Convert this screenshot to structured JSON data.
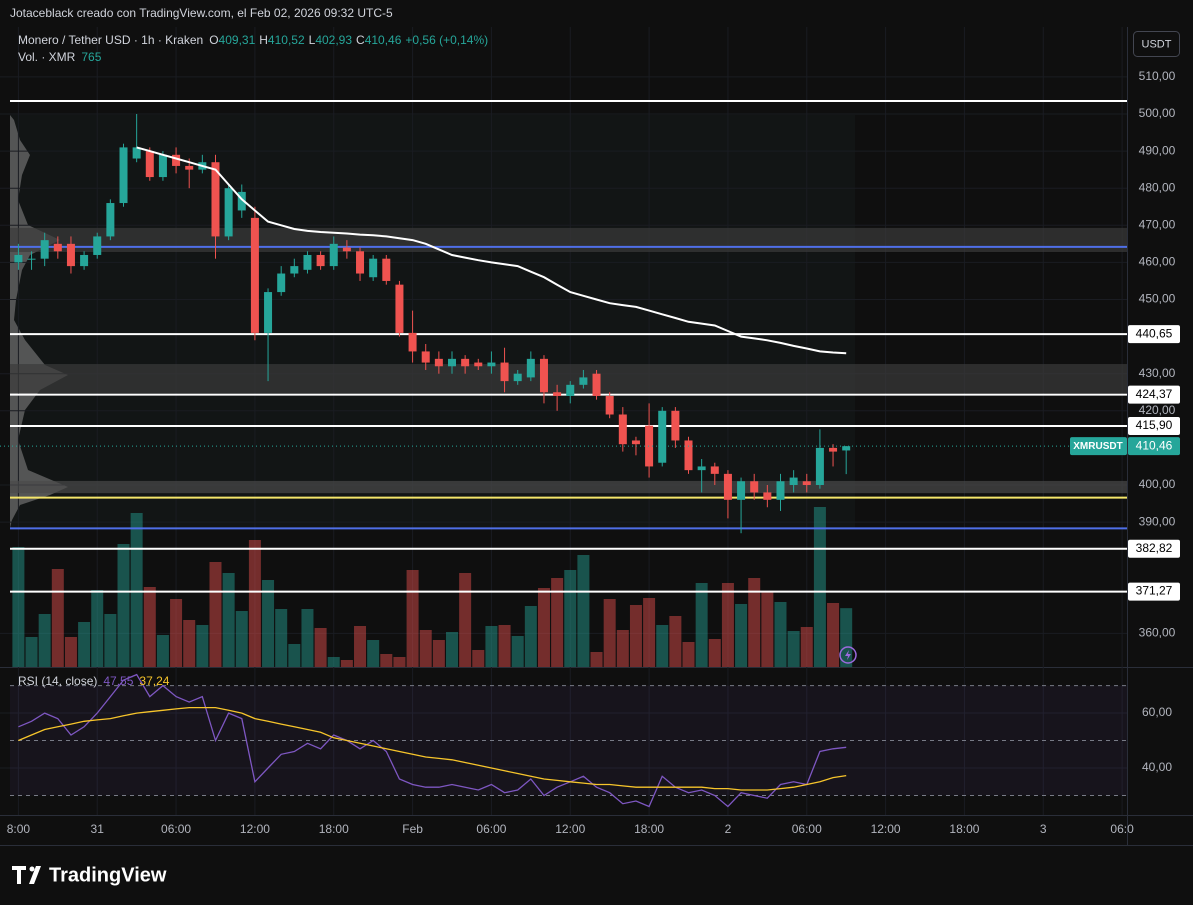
{
  "header": {
    "attribution": "Jotaceblack creado con TradingView.com, el Feb 02, 2026 09:32 UTC-5",
    "symbol": "Monero / Tether USD · 1h · Kraken",
    "ohlc": [
      "O",
      "409,31",
      "H",
      "410,52",
      "L",
      "402,93",
      "C",
      "410,46",
      "+0,56 (+0,14%)"
    ],
    "volume_label": "Vol. · XMR",
    "volume_value": "765"
  },
  "currency_button": "USDT",
  "chart_data": [
    {
      "type": "candlestick",
      "up_color": "#26a69a",
      "down_color": "#ef5350",
      "grid": true,
      "xlim": [
        -1.4,
        84.6
      ],
      "ylim": [
        350.94,
        523.45
      ],
      "vlim": [
        0,
        2600
      ],
      "xticks": [
        {
          "value": 0,
          "label": "8:00"
        },
        {
          "value": 6,
          "label": "31"
        },
        {
          "value": 12,
          "label": "06:00"
        },
        {
          "value": 18,
          "label": "12:00"
        },
        {
          "value": 24,
          "label": "18:00"
        },
        {
          "value": 30,
          "label": "Feb"
        },
        {
          "value": 36,
          "label": "06:00"
        },
        {
          "value": 42,
          "label": "12:00"
        },
        {
          "value": 48,
          "label": "18:00"
        },
        {
          "value": 54,
          "label": "2"
        },
        {
          "value": 60,
          "label": "06:00"
        },
        {
          "value": 66,
          "label": "12:00"
        },
        {
          "value": 72,
          "label": "18:00"
        },
        {
          "value": 78,
          "label": "3"
        },
        {
          "value": 84,
          "label": "06:0"
        }
      ],
      "yticks": [
        {
          "value": 510,
          "label": "510,00"
        },
        {
          "value": 500,
          "label": "500,00"
        },
        {
          "value": 490,
          "label": "490,00"
        },
        {
          "value": 480,
          "label": "480,00"
        },
        {
          "value": 470,
          "label": "470,00"
        },
        {
          "value": 460,
          "label": "460,00"
        },
        {
          "value": 450,
          "label": "450,00"
        },
        {
          "value": 430,
          "label": "430,00"
        },
        {
          "value": 420,
          "label": "420,00"
        },
        {
          "value": 400,
          "label": "400,00"
        },
        {
          "value": 390,
          "label": "390,00"
        },
        {
          "value": 360,
          "label": "360,00"
        }
      ],
      "x": [
        0,
        1,
        2,
        3,
        4,
        5,
        6,
        7,
        8,
        9,
        10,
        11,
        12,
        13,
        14,
        15,
        16,
        17,
        18,
        19,
        20,
        21,
        22,
        23,
        24,
        25,
        26,
        27,
        28,
        29,
        30,
        31,
        32,
        33,
        34,
        35,
        36,
        37,
        38,
        39,
        40,
        41,
        42,
        43,
        44,
        45,
        46,
        47,
        48,
        49,
        50,
        51,
        52,
        53,
        54,
        55,
        56,
        57,
        58,
        59,
        60,
        61,
        62,
        63
      ],
      "open": [
        460,
        461,
        461,
        465,
        465,
        459,
        462,
        467,
        476,
        488,
        490,
        483,
        489,
        486,
        485,
        487,
        467,
        474,
        472,
        441,
        452,
        457,
        458,
        462,
        459,
        464,
        463,
        456,
        461,
        454,
        441,
        436,
        434,
        432,
        434,
        433,
        432,
        433,
        428,
        429,
        434,
        425,
        424,
        427,
        430,
        424,
        419,
        412,
        416,
        406,
        420,
        412,
        404,
        405,
        403,
        396,
        401,
        398,
        396,
        400,
        401,
        400,
        410,
        409.31
      ],
      "high": [
        465,
        463,
        468,
        467,
        467,
        463,
        468,
        477,
        492,
        500,
        491,
        490,
        491,
        488,
        489,
        489,
        481,
        481,
        475,
        453,
        459,
        461,
        463,
        463,
        467,
        466,
        464,
        462,
        462,
        455,
        447,
        438,
        436,
        436,
        435,
        434,
        436,
        437,
        431,
        436,
        435,
        427,
        428,
        431,
        431,
        425,
        421,
        413,
        422,
        421,
        421,
        413,
        407,
        406,
        404,
        402,
        403,
        400,
        403,
        404,
        403,
        415,
        411,
        410.52
      ],
      "low": [
        458,
        458,
        459,
        461,
        457,
        458,
        461,
        466,
        475,
        487,
        482,
        482,
        484,
        480,
        484,
        461,
        466,
        472,
        439,
        428,
        451,
        456,
        457,
        458,
        458,
        461,
        455,
        455,
        454,
        440,
        433,
        431,
        430,
        430,
        430,
        431,
        430,
        425,
        427,
        428,
        422,
        420,
        422,
        426,
        423,
        418,
        409,
        408,
        402,
        405,
        410,
        403,
        398,
        400,
        391,
        387,
        396,
        394,
        393,
        398,
        398,
        399,
        405,
        402.93
      ],
      "close": [
        462,
        461,
        466,
        463,
        459,
        462,
        467,
        476,
        491,
        491,
        483,
        489,
        486,
        485,
        487,
        467,
        480,
        479,
        441,
        452,
        457,
        459,
        462,
        459,
        465,
        463,
        457,
        461,
        455,
        441,
        436,
        433,
        432,
        434,
        432,
        432,
        433,
        428,
        430,
        434,
        425,
        424,
        427,
        429,
        424,
        419,
        411,
        411,
        405,
        420,
        412,
        404,
        405,
        403,
        396,
        401,
        398,
        396,
        401,
        402,
        400,
        410,
        409,
        410.46
      ],
      "volume": [
        1560,
        390,
        689,
        1274,
        390,
        585,
        1001,
        689,
        1599,
        2002,
        1040,
        416,
        884,
        611,
        546,
        1365,
        1222,
        728,
        1651,
        1131,
        754,
        299,
        754,
        507,
        130,
        91,
        533,
        351,
        169,
        130,
        1261,
        481,
        351,
        455,
        1222,
        221,
        533,
        546,
        403,
        793,
        1027,
        1157,
        1261,
        1456,
        195,
        884,
        481,
        806,
        897,
        546,
        663,
        325,
        1092,
        364,
        1092,
        819,
        1157,
        988,
        845,
        468,
        520,
        2080,
        832,
        765
      ],
      "average": {
        "color": "#ffffff",
        "values": [
          null,
          null,
          null,
          null,
          null,
          null,
          null,
          null,
          null,
          491,
          490,
          489,
          488,
          487,
          486,
          485,
          481,
          477,
          474,
          471,
          470,
          469,
          468.5,
          468.2,
          468,
          467.8,
          467.5,
          467.3,
          467,
          466.5,
          466,
          465,
          463.5,
          462,
          461.3,
          460.6,
          460,
          459.5,
          459,
          457.5,
          456,
          454,
          452,
          451,
          450,
          449,
          448.5,
          448,
          447,
          446,
          445,
          444,
          443.5,
          443,
          441.5,
          440,
          439.5,
          439,
          438.3,
          437.5,
          436.8,
          436,
          435.7,
          435.5
        ]
      },
      "zones": [
        {
          "from": 462.8,
          "to": 469.3,
          "color": "#3a3a3a"
        },
        {
          "from": 424.8,
          "to": 432.6,
          "color": "#3a3a3a"
        },
        {
          "from": 397.8,
          "to": 401.1,
          "color": "#4a4a4a"
        }
      ],
      "levels": [
        {
          "value": 503.5,
          "color": "#ffffff"
        },
        {
          "value": 464.2,
          "color": "#4f6fe8"
        },
        {
          "value": 440.65,
          "label": "440,65",
          "color": "#ffffff"
        },
        {
          "value": 424.37,
          "label": "424,37",
          "color": "#ffffff"
        },
        {
          "value": 415.9,
          "label": "415,90",
          "color": "#ffffff"
        },
        {
          "value": 396.6,
          "color": "#f5e66a"
        },
        {
          "value": 388.3,
          "color": "#4f6fe8"
        },
        {
          "value": 382.82,
          "label": "382,82",
          "color": "#ffffff"
        },
        {
          "value": 371.27,
          "label": "371,27",
          "color": "#ffffff"
        }
      ],
      "current_price": {
        "name": "XMRUSDT",
        "value": 410.46,
        "label": "410,46",
        "color": "#26a69a"
      }
    },
    {
      "type": "line",
      "title": "RSI (14, close)",
      "ylim": [
        22.9,
        76.4
      ],
      "yticks": [
        {
          "value": 60,
          "label": "60,00"
        },
        {
          "value": 40,
          "label": "40,00"
        }
      ],
      "levels": [
        70,
        50,
        30
      ],
      "band_color": "#7e57c2",
      "series": [
        {
          "color": "#7e57c2",
          "last_label": "47,55",
          "values": [
            55,
            57,
            60,
            58,
            52,
            55,
            60,
            66,
            72,
            74,
            66,
            70,
            66,
            64,
            66,
            50,
            60,
            58,
            35,
            40,
            45,
            46,
            49,
            47,
            52,
            50,
            47,
            50,
            46,
            36,
            34,
            33,
            33,
            34,
            33,
            32,
            34,
            31,
            32,
            36,
            30,
            33,
            35,
            37,
            33,
            31,
            27,
            28,
            26,
            37,
            33,
            31,
            32,
            30,
            26,
            31,
            30,
            29,
            34,
            35,
            34,
            46,
            47,
            47.55
          ]
        },
        {
          "color": "#f7c52b",
          "last_label": "37,24",
          "values": [
            50,
            52,
            54,
            55,
            56,
            57,
            57.5,
            58,
            59,
            60,
            60.5,
            61,
            61.5,
            62,
            62,
            62,
            61,
            60,
            58,
            57,
            56,
            55,
            54,
            53,
            51,
            50,
            49,
            48,
            47,
            46,
            45,
            44,
            43.5,
            43,
            42,
            41,
            40,
            39,
            38,
            37,
            36,
            35.5,
            35,
            34.5,
            34,
            34,
            33.5,
            33,
            33,
            33,
            33,
            33,
            33,
            32.5,
            32.5,
            32,
            32,
            32,
            32.5,
            33,
            34,
            35,
            36.5,
            37.24
          ]
        }
      ]
    }
  ],
  "footer": {
    "logo": "TradingView"
  }
}
